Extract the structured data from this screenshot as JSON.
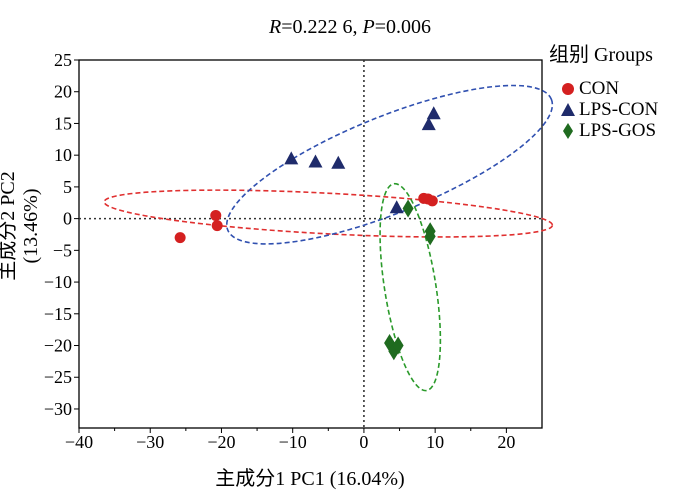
{
  "chart_data": {
    "type": "scatter",
    "title": {
      "r_label": "R",
      "r_text": "=0.222 6, ",
      "p_label": "P",
      "p_text": "=0.006"
    },
    "xlabel": "主成分1 PC1 (16.04%)",
    "ylabel": "主成分2 PC2 (13.46%)",
    "xlim": [
      -40,
      25
    ],
    "ylim": [
      -33,
      25
    ],
    "xticks": [
      -40,
      -30,
      -20,
      -10,
      0,
      10,
      20
    ],
    "yticks": [
      25,
      20,
      15,
      10,
      5,
      0,
      -5,
      -10,
      -15,
      -20,
      -25,
      -30
    ],
    "legend_title": "组别  Groups",
    "legend_position": "right",
    "series": [
      {
        "name": "CON",
        "marker": "circle",
        "color": "#d42020",
        "points": [
          [
            -25.8,
            -3.0
          ],
          [
            -20.8,
            0.5
          ],
          [
            -20.6,
            -1.1
          ],
          [
            8.4,
            3.2
          ],
          [
            9.0,
            3.1
          ],
          [
            9.6,
            2.8
          ]
        ],
        "ellipse": {
          "cx": -5.0,
          "cy": 0.8,
          "rx": 31.5,
          "ry": 3.2,
          "angle_deg": -3,
          "color": "#e03030"
        }
      },
      {
        "name": "LPS-CON",
        "marker": "triangle",
        "color": "#1f2b6b",
        "points": [
          [
            -10.2,
            9.5
          ],
          [
            -6.8,
            9.0
          ],
          [
            -3.6,
            8.8
          ],
          [
            4.6,
            1.8
          ],
          [
            9.1,
            14.9
          ],
          [
            9.8,
            16.6
          ]
        ],
        "ellipse": {
          "cx": 3.6,
          "cy": 8.5,
          "rx": 24.5,
          "ry": 7.6,
          "angle_deg": 22,
          "color": "#3050b0"
        }
      },
      {
        "name": "LPS-GOS",
        "marker": "diamond",
        "color": "#1f6b1f",
        "points": [
          [
            6.2,
            1.6
          ],
          [
            9.3,
            -2.0
          ],
          [
            9.3,
            -2.8
          ],
          [
            3.6,
            -19.6
          ],
          [
            4.2,
            -20.9
          ],
          [
            4.8,
            -20.0
          ]
        ],
        "ellipse": {
          "cx": 6.5,
          "cy": -10.8,
          "rx": 3.6,
          "ry": 16.5,
          "angle_deg": 9,
          "color": "#2a9a2a"
        }
      }
    ]
  }
}
